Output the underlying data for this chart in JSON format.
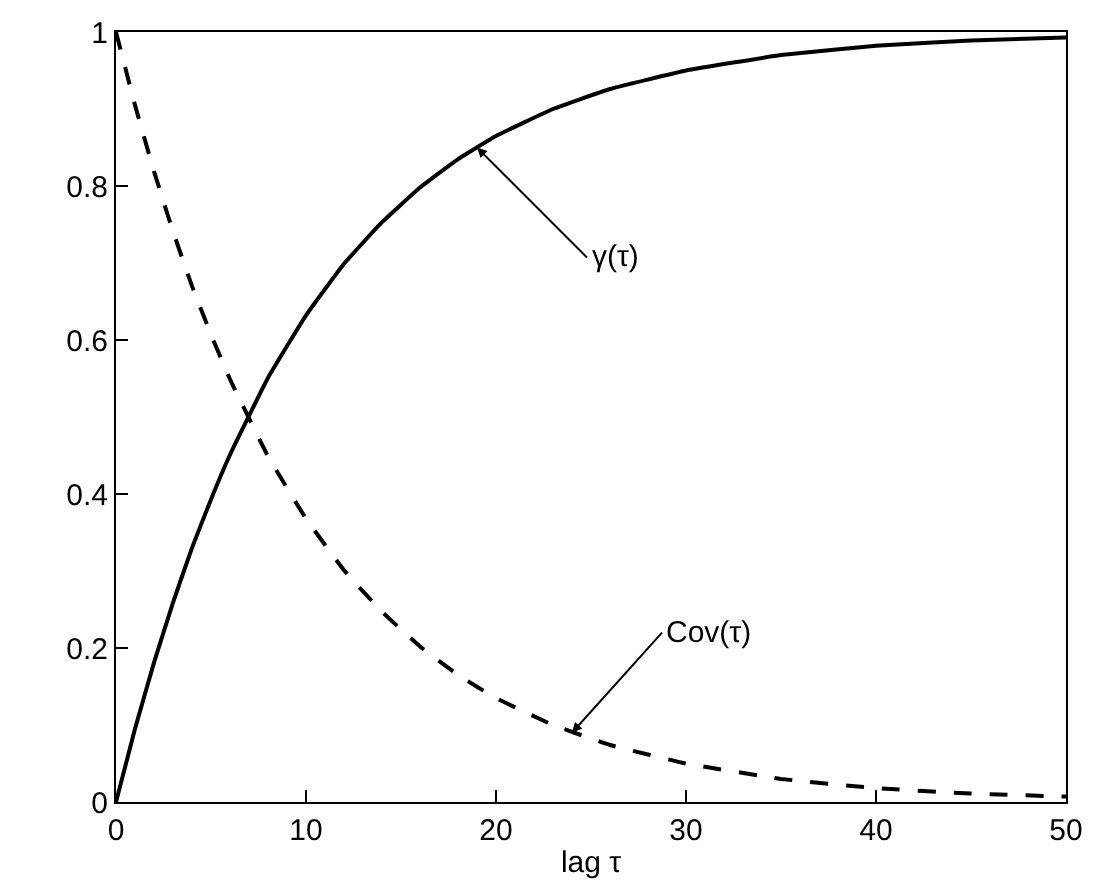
{
  "chart_data": {
    "type": "line",
    "xlabel": "lag τ",
    "x": [
      0,
      1,
      2,
      3,
      4,
      5,
      6,
      8,
      10,
      12,
      14,
      16,
      18,
      20,
      23,
      26,
      30,
      35,
      40,
      45,
      50
    ],
    "series": [
      {
        "color": "#000000",
        "line_style": "solid",
        "values": [
          0,
          0.095,
          0.181,
          0.259,
          0.33,
          0.393,
          0.451,
          0.551,
          0.632,
          0.699,
          0.753,
          0.798,
          0.835,
          0.865,
          0.9,
          0.926,
          0.95,
          0.97,
          0.982,
          0.989,
          0.993
        ]
      },
      {
        "color": "#000000",
        "line_style": "dashed",
        "values": [
          1,
          0.905,
          0.819,
          0.741,
          0.67,
          0.607,
          0.549,
          0.449,
          0.368,
          0.301,
          0.247,
          0.202,
          0.165,
          0.135,
          0.1,
          0.074,
          0.05,
          0.03,
          0.018,
          0.011,
          0.007
        ]
      }
    ],
    "annotations": [
      {
        "text": "γ(τ)",
        "x": 19,
        "y": 0.85
      },
      {
        "text": "Cov(τ)",
        "x": 24,
        "y": 0.09
      }
    ],
    "xlim": [
      0,
      50
    ],
    "xticks": [
      0,
      10,
      20,
      30,
      40,
      50
    ],
    "ylim": [
      0,
      1
    ],
    "yticks": [
      0,
      0.2,
      0.4,
      0.6,
      0.8,
      1
    ],
    "marker": "none"
  }
}
